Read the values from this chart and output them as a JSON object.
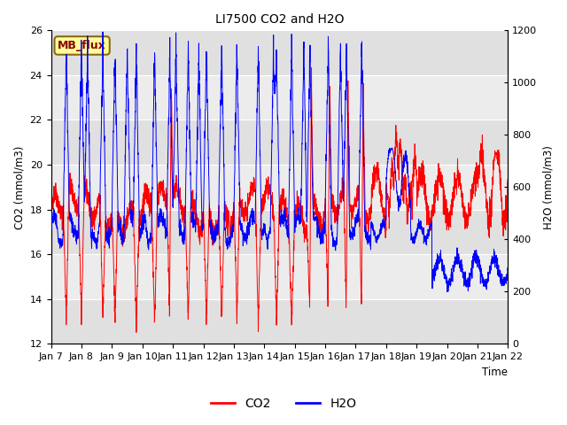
{
  "title": "LI7500 CO2 and H2O",
  "xlabel": "Time",
  "ylabel_left": "CO2 (mmol/m3)",
  "ylabel_right": "H2O (mmol/m3)",
  "annotation": "MB_flux",
  "annotation_color": "#8B0000",
  "annotation_bg": "#FFFF99",
  "annotation_border": "#8B6914",
  "co2_color": "red",
  "h2o_color": "blue",
  "co2_ylim": [
    12,
    26
  ],
  "h2o_ylim": [
    0,
    1200
  ],
  "bg_light": "#DCDCDC",
  "bg_dark": "#C8C8C8",
  "fig_bg": "#FFFFFF",
  "x_tick_labels": [
    "Jan 7",
    "Jan 8",
    "Jan 9",
    "Jan 10",
    "Jan 11",
    "Jan 12",
    "Jan 13",
    "Jan 14",
    "Jan 15",
    "Jan 16",
    "Jan 17",
    "Jan 18",
    "Jan 19",
    "Jan 20",
    "Jan 21",
    "Jan 22"
  ],
  "n_points": 3000,
  "seed": 42
}
